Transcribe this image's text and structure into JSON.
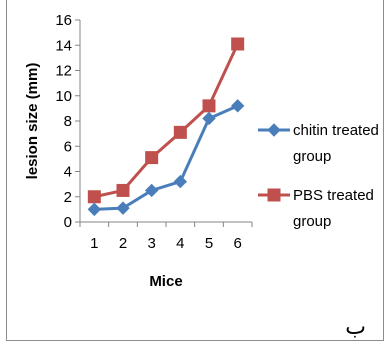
{
  "chart_data": {
    "type": "line",
    "xlabel": "Mice",
    "ylabel": "lesion size (mm)",
    "x": [
      1,
      2,
      3,
      4,
      5,
      6
    ],
    "ylim": [
      0,
      16
    ],
    "yticks": [
      0,
      2,
      4,
      6,
      8,
      10,
      12,
      14,
      16
    ],
    "grid": false,
    "legend_position": "right",
    "series": [
      {
        "name": "chitin treated group",
        "name_lines": [
          "chitin treated",
          "group"
        ],
        "color": "#4a7ebb",
        "marker": "diamond",
        "values": [
          1.0,
          1.1,
          2.5,
          3.2,
          8.2,
          9.2
        ]
      },
      {
        "name": "PBS treated group",
        "name_lines": [
          "PBS treated",
          "group"
        ],
        "color": "#c0504d",
        "marker": "square",
        "values": [
          2.0,
          2.5,
          5.1,
          7.1,
          9.2,
          14.1
        ]
      }
    ]
  },
  "corner_mark": "ب"
}
